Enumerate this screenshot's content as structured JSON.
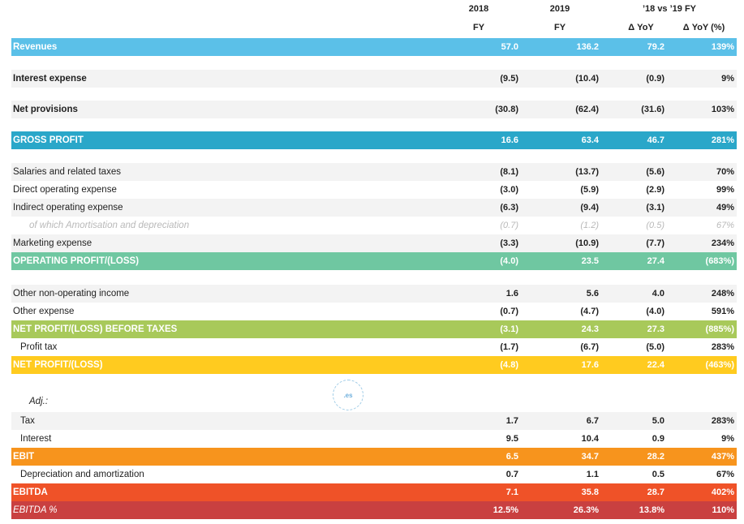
{
  "header": {
    "col_2018": "2018",
    "col_2019": "2019",
    "col_compare": "’18 vs ’19 FY",
    "sub_fy_2018": "FY",
    "sub_fy_2019": "FY",
    "sub_yoy": "Δ YoY",
    "sub_yoy_pct": "Δ YoY (%)"
  },
  "rows": [
    {
      "label": "Revenues",
      "v2018": "57.0",
      "v2019": "136.2",
      "yoy": "79.2",
      "yoy_pct": "139%"
    },
    {
      "label": "Interest expense",
      "v2018": "(9.5)",
      "v2019": "(10.4)",
      "yoy": "(0.9)",
      "yoy_pct": "9%"
    },
    {
      "label": "Net provisions",
      "v2018": "(30.8)",
      "v2019": "(62.4)",
      "yoy": "(31.6)",
      "yoy_pct": "103%"
    },
    {
      "label": "GROSS PROFIT",
      "v2018": "16.6",
      "v2019": "63.4",
      "yoy": "46.7",
      "yoy_pct": "281%"
    },
    {
      "label": "Salaries and related taxes",
      "v2018": "(8.1)",
      "v2019": "(13.7)",
      "yoy": "(5.6)",
      "yoy_pct": "70%"
    },
    {
      "label": "Direct operating expense",
      "v2018": "(3.0)",
      "v2019": "(5.9)",
      "yoy": "(2.9)",
      "yoy_pct": "99%"
    },
    {
      "label": "Indirect operating expense",
      "v2018": "(6.3)",
      "v2019": "(9.4)",
      "yoy": "(3.1)",
      "yoy_pct": "49%"
    },
    {
      "label": "of which Amortisation and depreciation",
      "v2018": "(0.7)",
      "v2019": "(1.2)",
      "yoy": "(0.5)",
      "yoy_pct": "67%"
    },
    {
      "label": "Marketing expense",
      "v2018": "(3.3)",
      "v2019": "(10.9)",
      "yoy": "(7.7)",
      "yoy_pct": "234%"
    },
    {
      "label": "OPERATING PROFIT/(LOSS)",
      "v2018": "(4.0)",
      "v2019": "23.5",
      "yoy": "27.4",
      "yoy_pct": "(683%)"
    },
    {
      "label": "Other non-operating income",
      "v2018": "1.6",
      "v2019": "5.6",
      "yoy": "4.0",
      "yoy_pct": "248%"
    },
    {
      "label": "Other expense",
      "v2018": "(0.7)",
      "v2019": "(4.7)",
      "yoy": "(4.0)",
      "yoy_pct": "591%"
    },
    {
      "label": "NET PROFIT/(LOSS) BEFORE TAXES",
      "v2018": "(3.1)",
      "v2019": "24.3",
      "yoy": "27.3",
      "yoy_pct": "(885%)"
    },
    {
      "label": "Profit tax",
      "v2018": "(1.7)",
      "v2019": "(6.7)",
      "yoy": "(5.0)",
      "yoy_pct": "283%"
    },
    {
      "label": "NET PROFIT/(LOSS)",
      "v2018": "(4.8)",
      "v2019": "17.6",
      "yoy": "22.4",
      "yoy_pct": "(463%)"
    },
    {
      "label": "Adj.:",
      "v2018": "",
      "v2019": "",
      "yoy": "",
      "yoy_pct": ""
    },
    {
      "label": "Tax",
      "v2018": "1.7",
      "v2019": "6.7",
      "yoy": "5.0",
      "yoy_pct": "283%"
    },
    {
      "label": "Interest",
      "v2018": "9.5",
      "v2019": "10.4",
      "yoy": "0.9",
      "yoy_pct": "9%"
    },
    {
      "label": "EBIT",
      "v2018": "6.5",
      "v2019": "34.7",
      "yoy": "28.2",
      "yoy_pct": "437%"
    },
    {
      "label": "Depreciation and amortization",
      "v2018": "0.7",
      "v2019": "1.1",
      "yoy": "0.5",
      "yoy_pct": "67%"
    },
    {
      "label": "EBITDA",
      "v2018": "7.1",
      "v2019": "35.8",
      "yoy": "28.7",
      "yoy_pct": "402%"
    },
    {
      "label": "EBITDA %",
      "v2018": "12.5%",
      "v2019": "26.3%",
      "yoy": "13.8%",
      "yoy_pct": "110%"
    }
  ],
  "colors": {
    "revenues": "#5bc0e8",
    "gross_profit": "#2aa7c9",
    "operating_profit": "#6fc7a1",
    "net_before_taxes": "#a8c95a",
    "net_profit": "#ffcb1f",
    "ebit": "#f7941d",
    "ebitda": "#ef5228",
    "ebitda_pct": "#c94040",
    "row_shade": "#f3f3f3"
  },
  "stamp": {
    "text": ".es"
  }
}
